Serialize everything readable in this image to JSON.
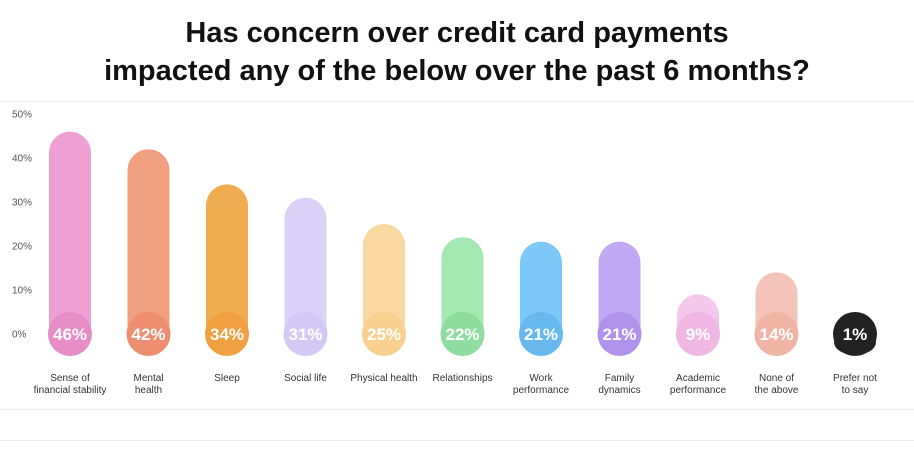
{
  "chart_data": {
    "type": "bar",
    "title_lines": [
      "Has concern over credit card payments",
      "impacted any of the below over the past 6 months?"
    ],
    "categories": [
      [
        "Sense of",
        "financial stability"
      ],
      [
        "Mental",
        "health"
      ],
      [
        "Sleep"
      ],
      [
        "Social life"
      ],
      [
        "Physical health"
      ],
      [
        "Relationships"
      ],
      [
        "Work",
        "performance"
      ],
      [
        "Family",
        "dynamics"
      ],
      [
        "Academic",
        "performance"
      ],
      [
        "None of",
        "the above"
      ],
      [
        "Prefer not",
        "to say"
      ]
    ],
    "values": [
      46,
      42,
      34,
      31,
      25,
      22,
      21,
      21,
      9,
      14,
      1
    ],
    "value_labels": [
      "46%",
      "42%",
      "34%",
      "31%",
      "25%",
      "22%",
      "21%",
      "21%",
      "9%",
      "14%",
      "1%"
    ],
    "colors": [
      "#ee9fd3",
      "#f0a080",
      "#f0ac50",
      "#dcd2f8",
      "#f8d8a0",
      "#a4e8b2",
      "#7cc8f8",
      "#c0a8f4",
      "#f4c8ec",
      "#f4c4b8",
      "#222222"
    ],
    "circle_colors": [
      "#e88cc8",
      "#ee8e70",
      "#f0a040",
      "#d4c8f4",
      "#f8d090",
      "#8edca0",
      "#68b8f0",
      "#b092ec",
      "#f0b6e4",
      "#f0b4a4",
      "#222222"
    ],
    "yticks": [
      "0%",
      "10%",
      "20%",
      "30%",
      "40%",
      "50%"
    ],
    "ylim": [
      0,
      50
    ],
    "grid": false,
    "xlabel": "",
    "ylabel": ""
  }
}
